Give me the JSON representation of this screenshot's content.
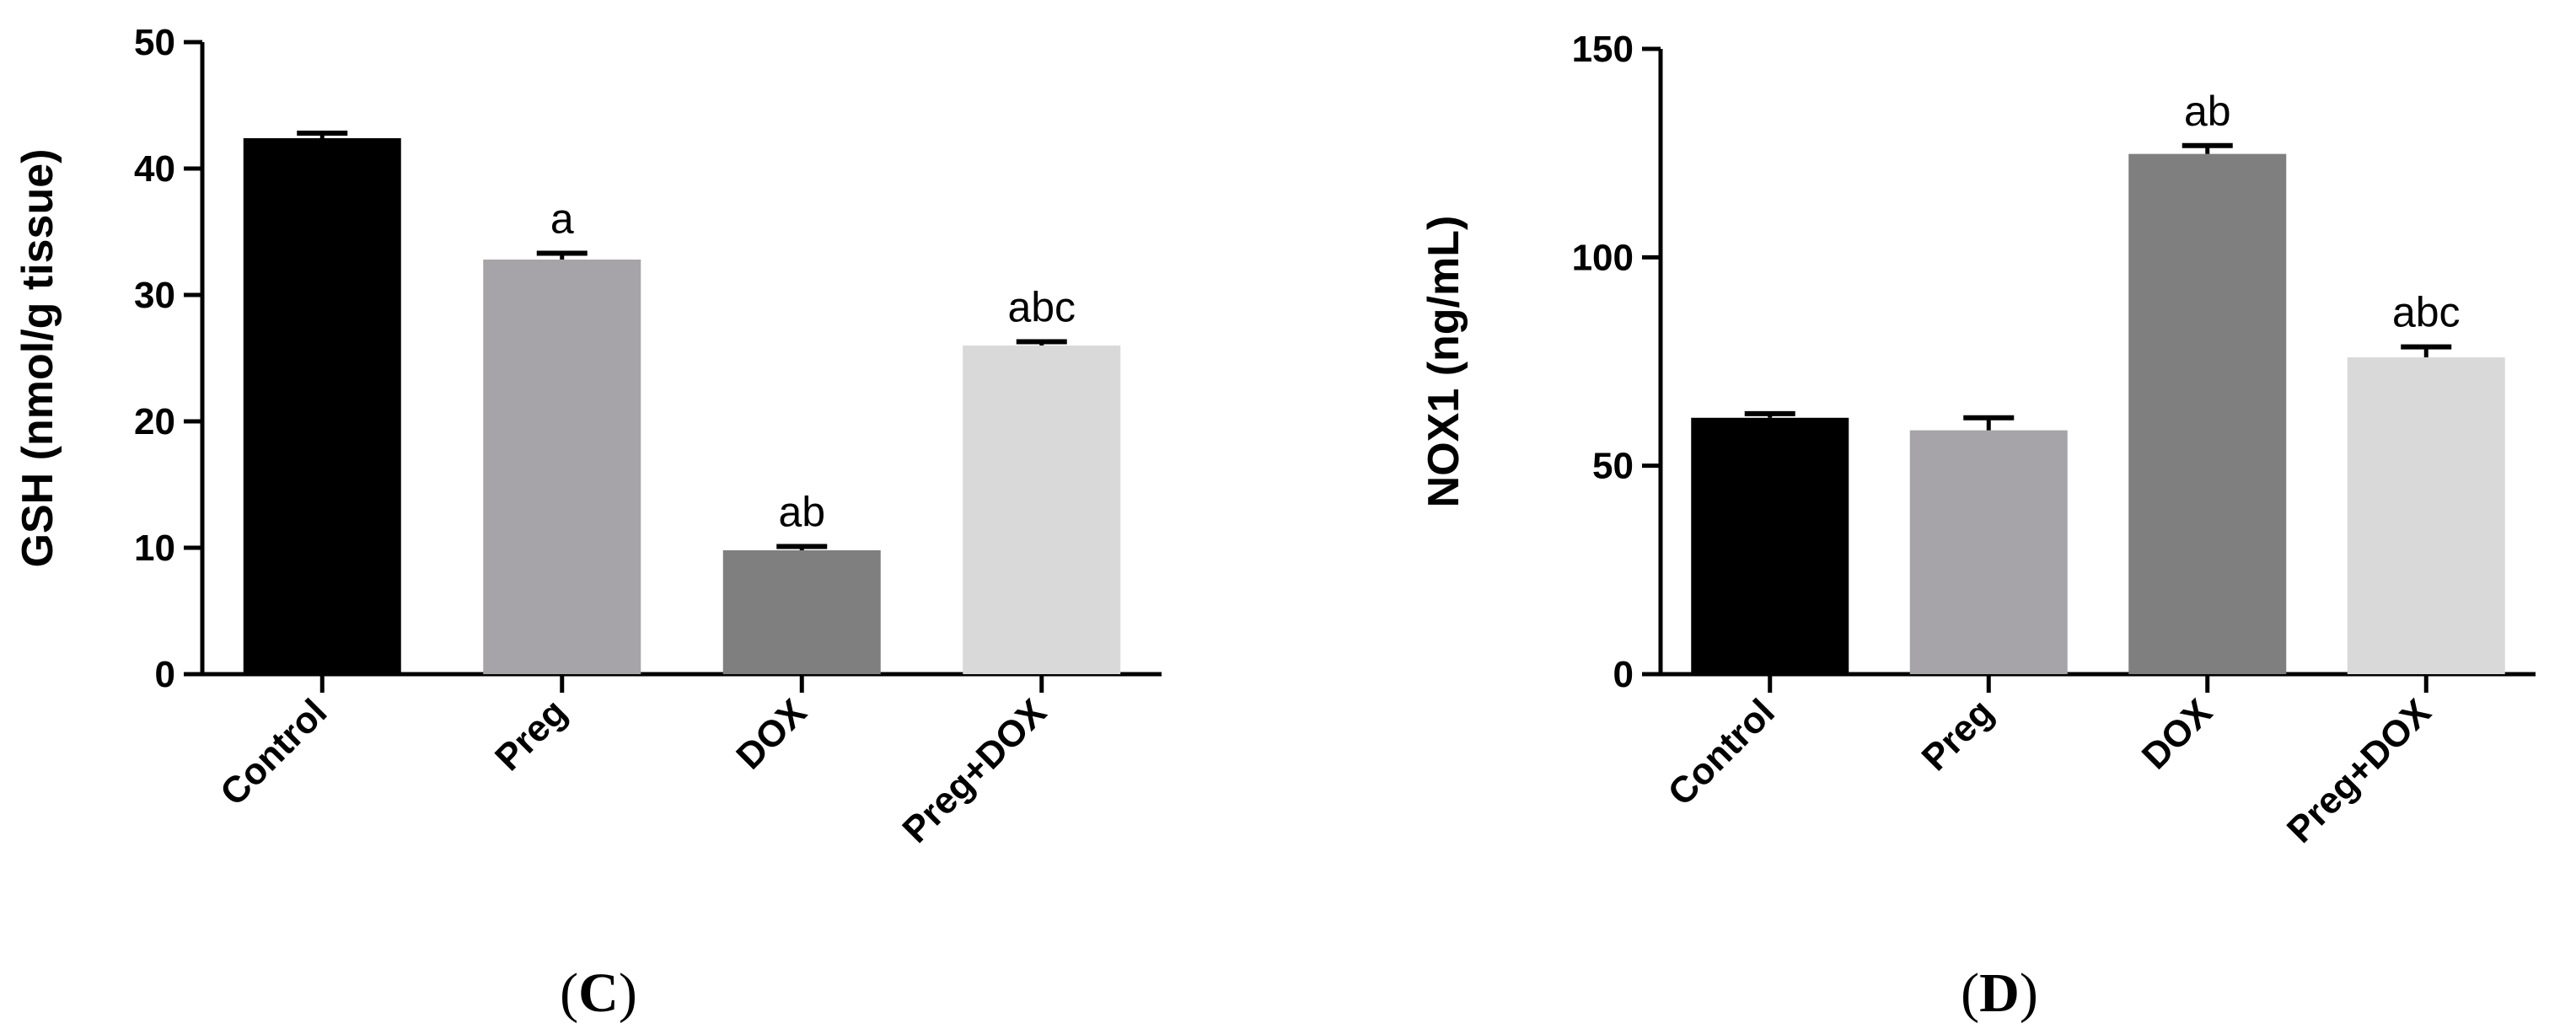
{
  "chart_data": [
    {
      "type": "bar",
      "panel_label": "C",
      "ylabel": "GSH (nmol/g tissue)",
      "xlabel": "",
      "categories": [
        "Control",
        "Preg",
        "DOX",
        "Preg+DOX"
      ],
      "values": [
        42.4,
        32.8,
        9.8,
        26.0
      ],
      "errors": [
        0.4,
        0.5,
        0.3,
        0.3
      ],
      "annotations": [
        "",
        "a",
        "ab",
        "abc"
      ],
      "colors": [
        "#000000",
        "#a6a4a9",
        "#7f7f7f",
        "#d9d9d9"
      ],
      "ylim": [
        0,
        50
      ],
      "yticks": [
        0,
        10,
        20,
        30,
        40,
        50
      ],
      "grid": false,
      "legend": "none"
    },
    {
      "type": "bar",
      "panel_label": "D",
      "ylabel": "NOX1 (ng/mL)",
      "xlabel": "",
      "categories": [
        "Control",
        "Preg",
        "DOX",
        "Preg+DOX"
      ],
      "values": [
        61.5,
        58.5,
        124.8,
        76.0
      ],
      "errors": [
        1.0,
        3.0,
        2.0,
        2.5
      ],
      "annotations": [
        "",
        "",
        "ab",
        "abc"
      ],
      "colors": [
        "#000000",
        "#a6a4a9",
        "#7f7f7f",
        "#d9d9d9"
      ],
      "ylim": [
        0,
        150
      ],
      "yticks": [
        0,
        50,
        100,
        150
      ],
      "grid": false,
      "legend": "none"
    }
  ]
}
